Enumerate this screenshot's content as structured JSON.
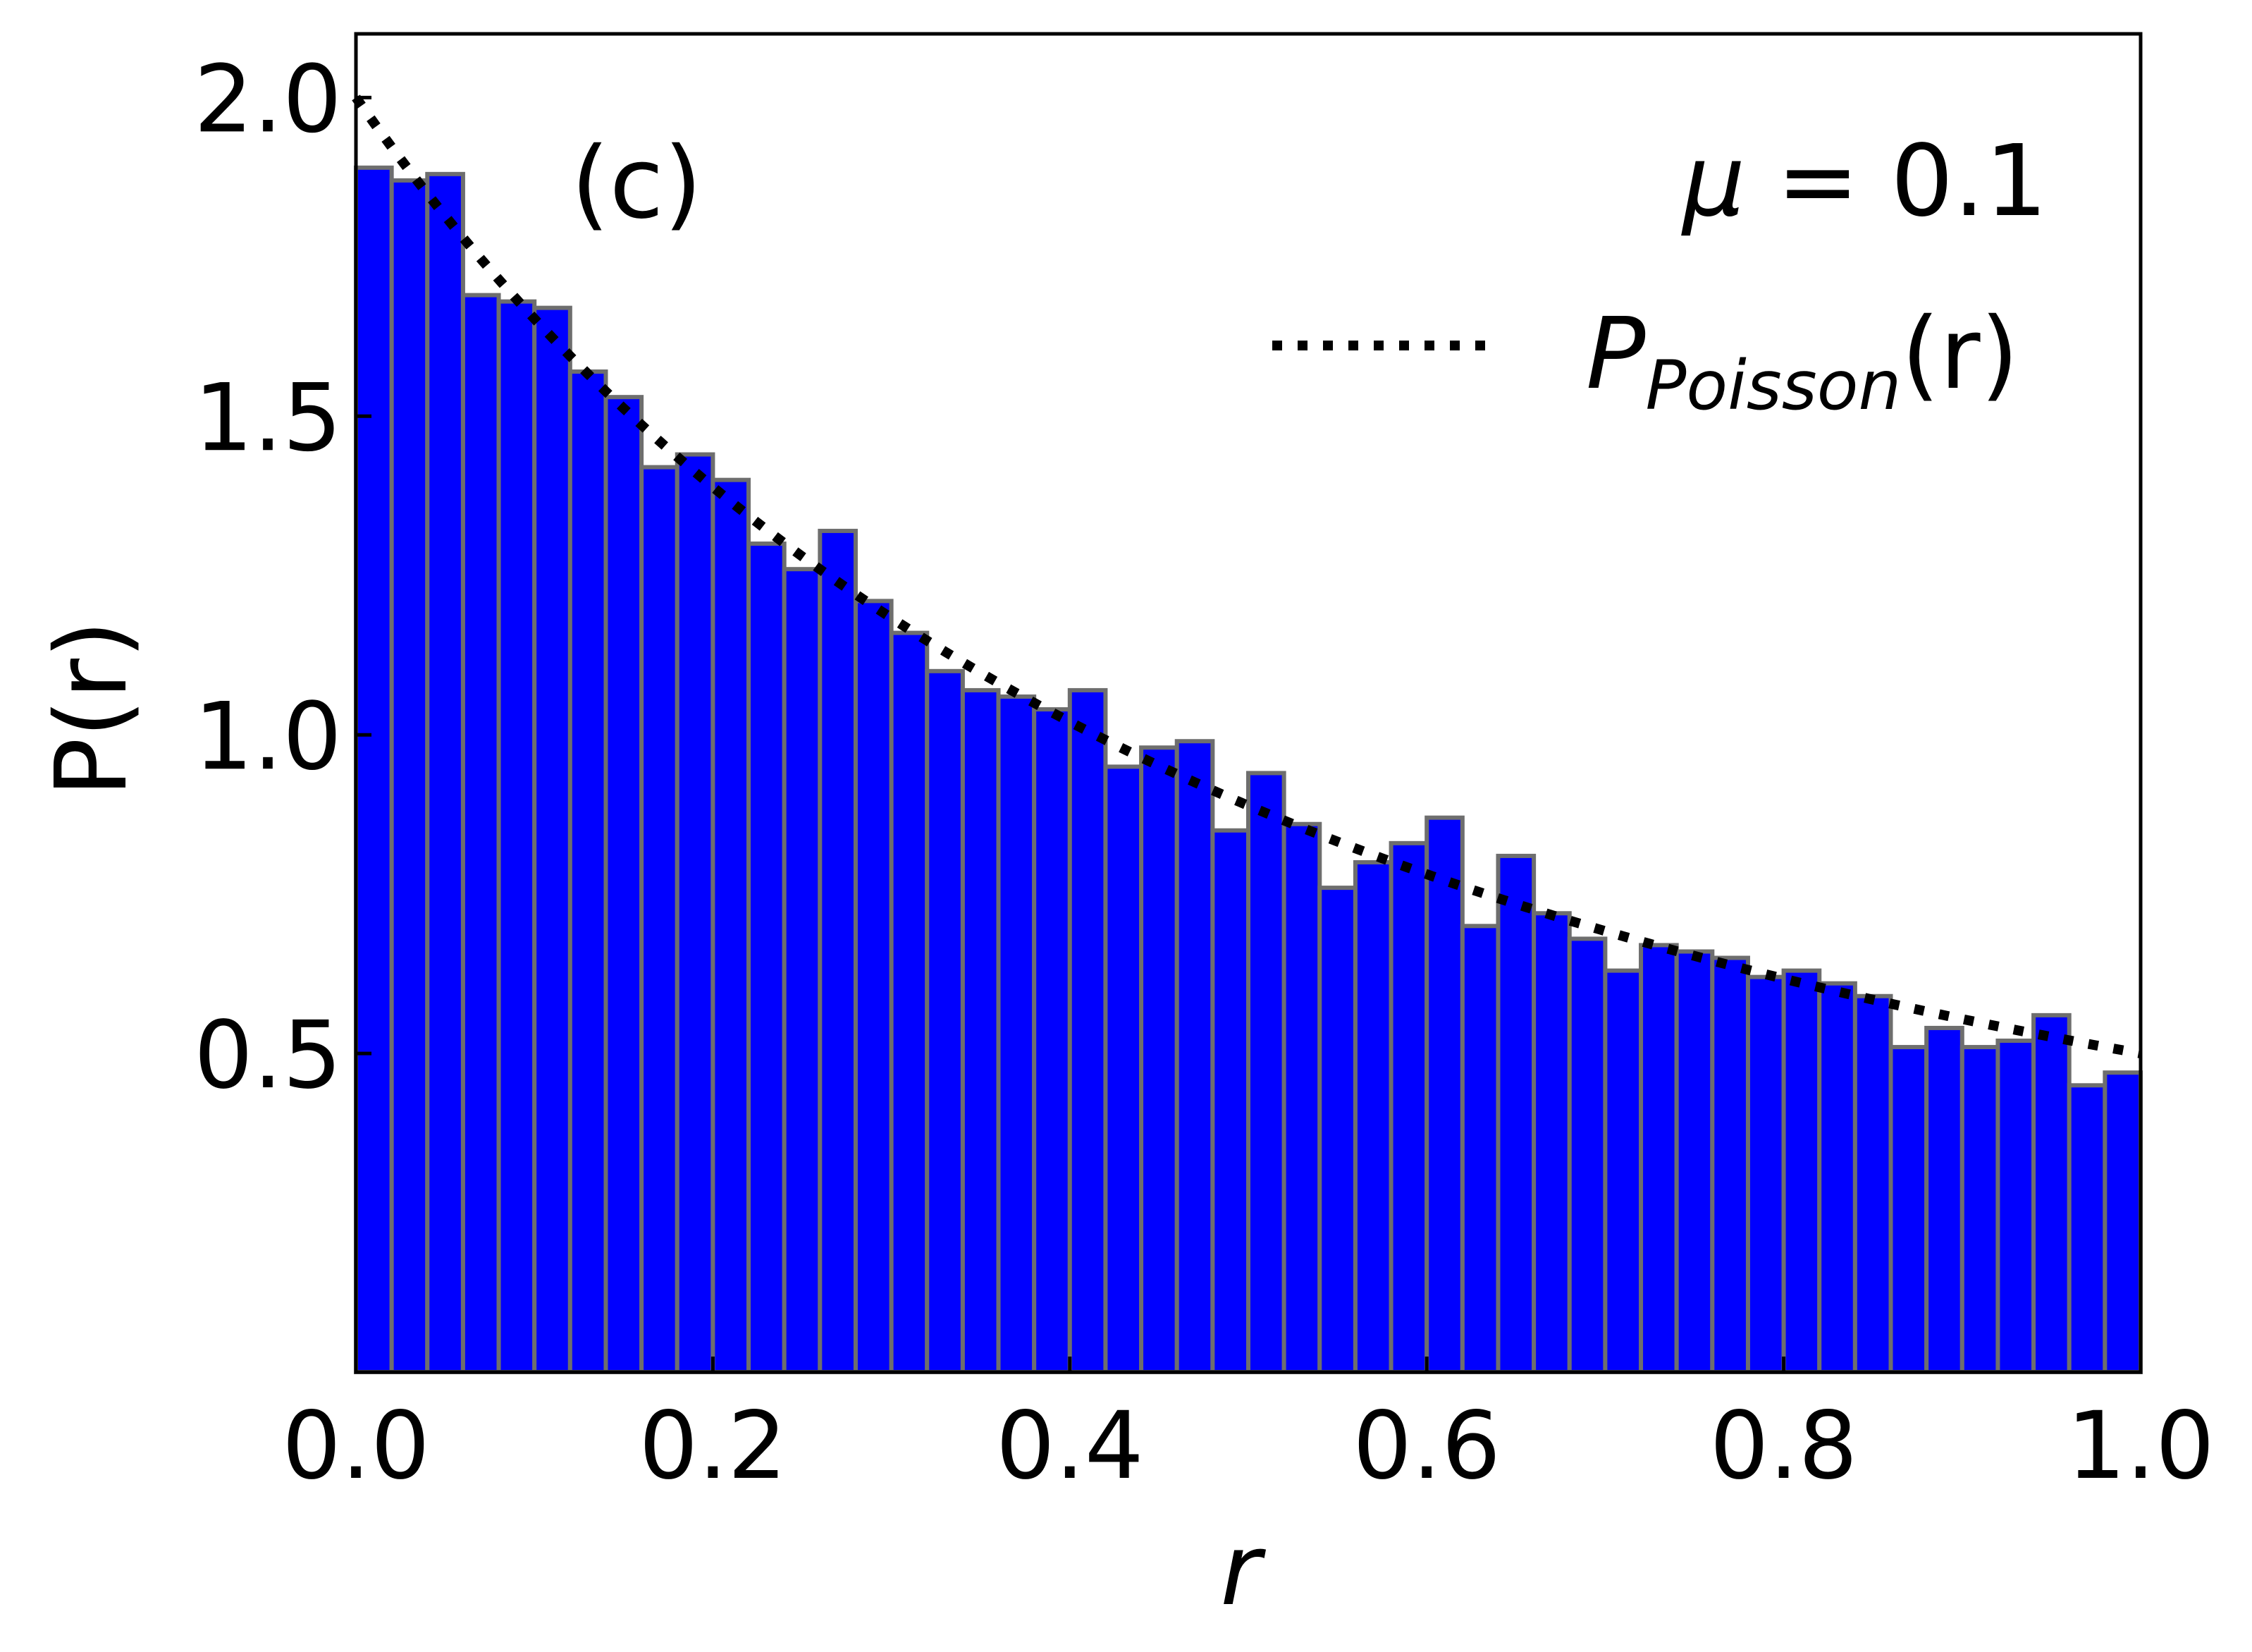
{
  "chart_data": {
    "type": "bar",
    "xlabel": "r",
    "ylabel": "P(r)",
    "xlim": [
      0.0,
      1.0
    ],
    "ylim": [
      0.0,
      2.1
    ],
    "xticks": [
      "0.0",
      "0.2",
      "0.4",
      "0.6",
      "0.8",
      "1.0"
    ],
    "yticks": [
      "0.5",
      "1.0",
      "1.5",
      "2.0"
    ],
    "panel_label": "(c)",
    "mu_prefix": "μ = ",
    "mu_value": "0.1",
    "bin_width": 0.02,
    "bars": [
      1.89,
      1.87,
      1.88,
      1.69,
      1.68,
      1.67,
      1.57,
      1.53,
      1.42,
      1.44,
      1.4,
      1.3,
      1.26,
      1.32,
      1.21,
      1.16,
      1.1,
      1.07,
      1.06,
      1.04,
      1.07,
      0.95,
      0.98,
      0.99,
      0.85,
      0.94,
      0.86,
      0.76,
      0.8,
      0.83,
      0.87,
      0.7,
      0.81,
      0.72,
      0.68,
      0.63,
      0.67,
      0.66,
      0.65,
      0.62,
      0.63,
      0.61,
      0.59,
      0.51,
      0.54,
      0.51,
      0.52,
      0.56,
      0.45,
      0.47
    ],
    "bar_color": "#0000ff",
    "bar_edge_color": "#6e6e6e",
    "series": [
      {
        "name": "P_Poisson(r)",
        "label_main": "P",
        "label_sub": "Poisson",
        "label_tail": "(r)",
        "formula": "2/(1+r)^2",
        "style": "dotted",
        "color": "#000000"
      }
    ],
    "legend_position": "top-right",
    "grid": false
  }
}
